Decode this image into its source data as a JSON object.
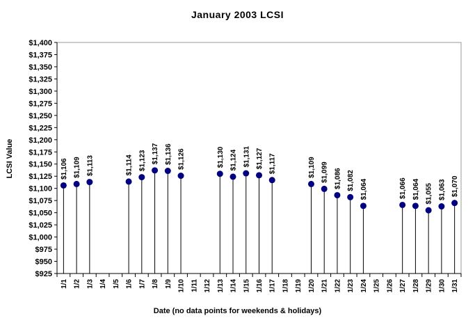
{
  "chart_data": {
    "type": "scatter",
    "title": "January 2003 LCSI",
    "xlabel": "Date (no data points for weekends & holidays)",
    "ylabel": "LCSI Value",
    "categories": [
      "1/1",
      "1/2",
      "1/3",
      "1/4",
      "1/5",
      "1/6",
      "1/7",
      "1/8",
      "1/9",
      "1/10",
      "1/11",
      "1/12",
      "1/13",
      "1/14",
      "1/15",
      "1/16",
      "1/17",
      "1/18",
      "1/19",
      "1/20",
      "1/21",
      "1/22",
      "1/23",
      "1/24",
      "1/25",
      "1/26",
      "1/27",
      "1/28",
      "1/29",
      "1/30",
      "1/31"
    ],
    "values": [
      1106,
      1109,
      1113,
      null,
      null,
      1114,
      1123,
      1137,
      1136,
      1126,
      null,
      null,
      1130,
      1124,
      1131,
      1127,
      1117,
      null,
      null,
      1109,
      1099,
      1086,
      1082,
      1064,
      null,
      null,
      1066,
      1064,
      1055,
      1063,
      1070
    ],
    "point_labels": [
      "$1,106",
      "$1,109",
      "$1,113",
      null,
      null,
      "$1,114",
      "$1,123",
      "$1,137",
      "$1,136",
      "$1,126",
      null,
      null,
      "$1,130",
      "$1,124",
      "$1,131",
      "$1,127",
      "$1,117",
      null,
      null,
      "$1,109",
      "$1,099",
      "$1,086",
      "$1,082",
      "$1,064",
      null,
      null,
      "$1,066",
      "$1,064",
      "$1,055",
      "$1,063",
      "$1,070"
    ],
    "ylim": [
      925,
      1400
    ],
    "ytick_step": 25,
    "ytick_labels": [
      "$1,400",
      "$1,375",
      "$1,350",
      "$1,325",
      "$1,300",
      "$1,275",
      "$1,250",
      "$1,225",
      "$1,200",
      "$1,175",
      "$1,150",
      "$1,125",
      "$1,100",
      "$1,075",
      "$1,050",
      "$1,025",
      "$1,000",
      "$975",
      "$950",
      "$925"
    ],
    "grid": false,
    "legend": "none",
    "marker_color": "#000080",
    "stem_color": "#000000",
    "axis_color": "#000000",
    "plot_border_color": "#999999",
    "background": "#ffffff"
  }
}
